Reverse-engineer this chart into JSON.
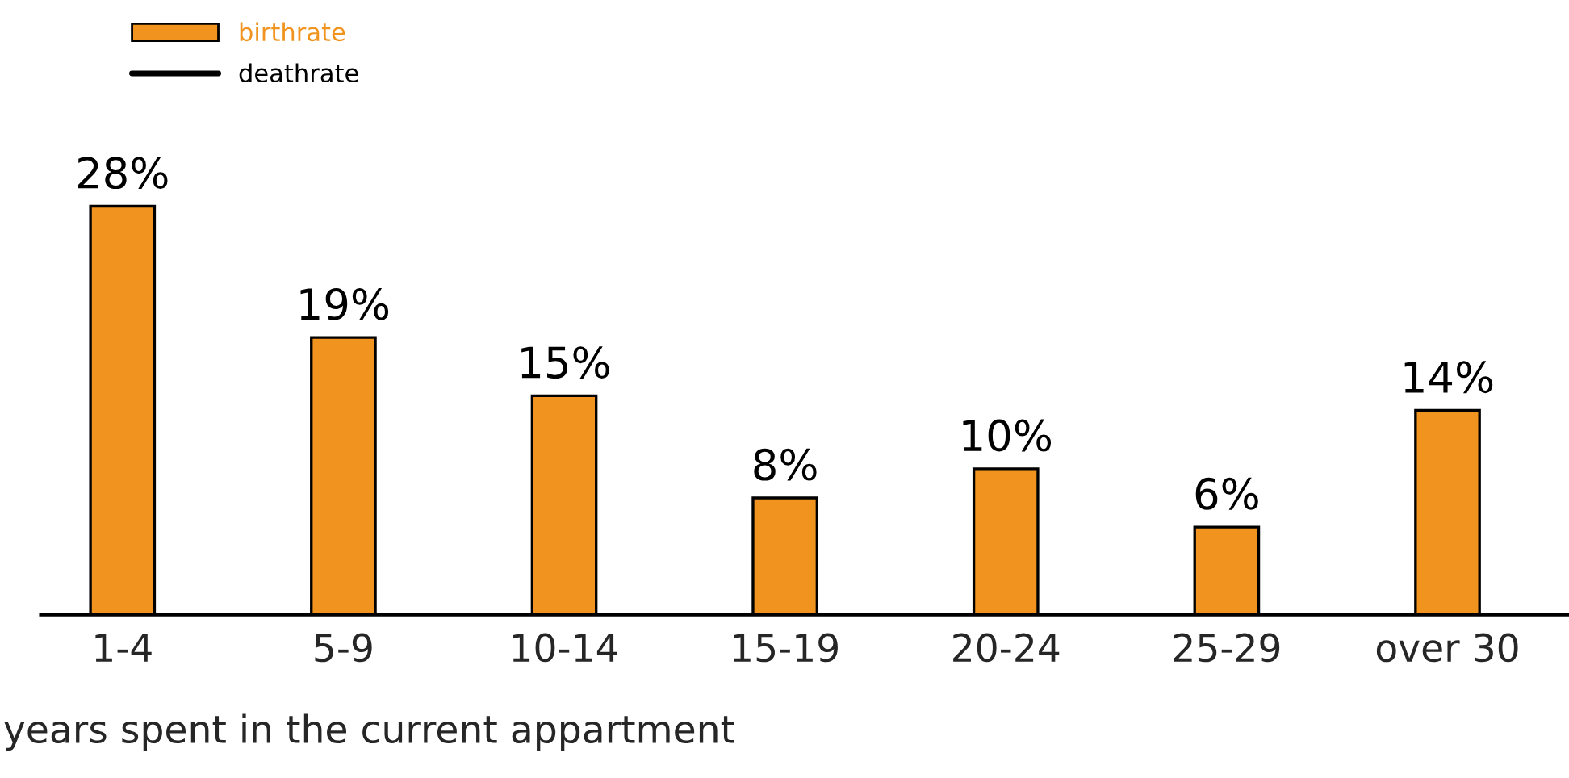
{
  "chart_data": {
    "type": "bar",
    "xlabel": "years spent in the current appartment",
    "categories": [
      "1-4",
      "5-9",
      "10-14",
      "15-19",
      "20-24",
      "25-29",
      "over 30"
    ],
    "series": [
      {
        "name": "birthrate",
        "color": "#f0941f",
        "values": [
          28,
          19,
          15,
          8,
          10,
          6,
          14
        ],
        "value_labels": [
          "28%",
          "19%",
          "15%",
          "8%",
          "10%",
          "6%",
          "14%"
        ]
      },
      {
        "name": "deathrate",
        "type": "line",
        "color": "#000000",
        "values": [
          null,
          null,
          null,
          null,
          null,
          null,
          null
        ]
      }
    ],
    "legend": "top left",
    "grid": false
  }
}
